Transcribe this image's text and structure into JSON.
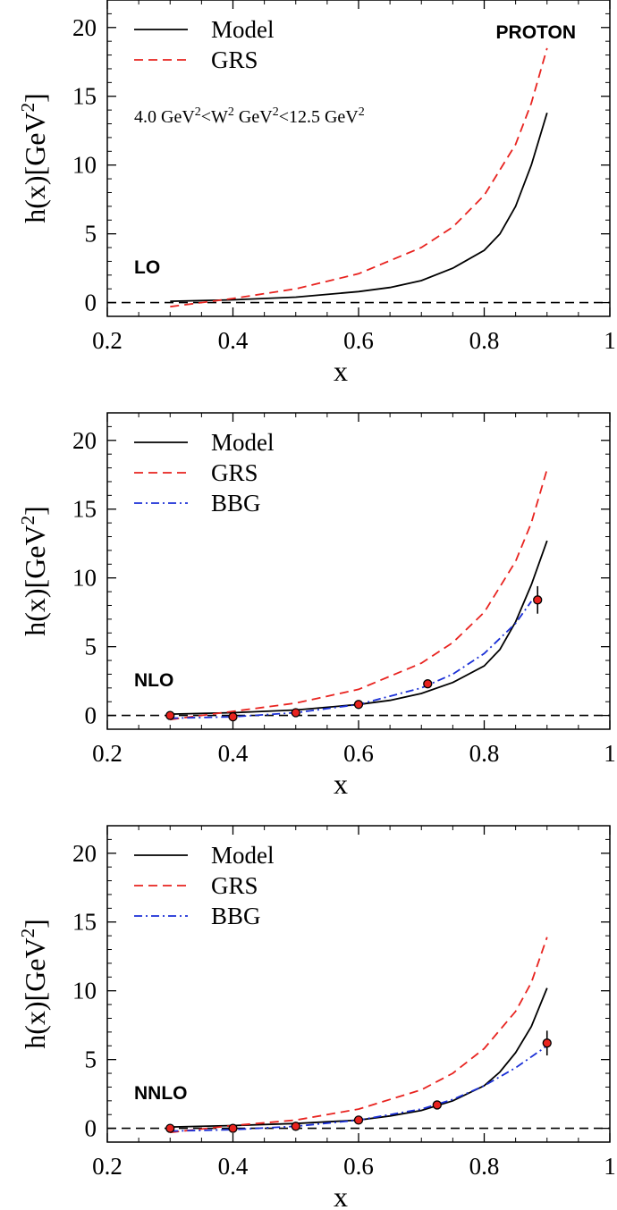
{
  "chart_data": [
    {
      "type": "line",
      "panel_label": "LO",
      "corner_label": "PROTON",
      "annotation": {
        "prefix": "4.0 GeV",
        "mid1": "<W",
        "mid2": " GeV",
        "mid3": "<12.5 GeV",
        "sup": "2"
      },
      "ylabel": "h(x)[GeV",
      "ylabel_sup": "2",
      "ylabel_close": "]",
      "xlabel": "x",
      "xlim": [
        0.2,
        1.0
      ],
      "ylim": [
        -1,
        22
      ],
      "xticks": [
        "0.2",
        "0.4",
        "0.6",
        "0.8",
        "1"
      ],
      "yticks": [
        "0",
        "5",
        "10",
        "15",
        "20"
      ],
      "baseline": 0,
      "series": [
        {
          "name": "Model",
          "color": "#000000",
          "style": "solid",
          "x": [
            0.3,
            0.4,
            0.5,
            0.6,
            0.65,
            0.7,
            0.75,
            0.8,
            0.825,
            0.85,
            0.875,
            0.9
          ],
          "y": [
            0.1,
            0.2,
            0.4,
            0.8,
            1.1,
            1.6,
            2.5,
            3.8,
            5.0,
            7.0,
            10.0,
            13.8
          ]
        },
        {
          "name": "GRS",
          "color": "#e8231f",
          "style": "dashed",
          "x": [
            0.3,
            0.4,
            0.5,
            0.6,
            0.7,
            0.75,
            0.8,
            0.85,
            0.875,
            0.9
          ],
          "y": [
            -0.3,
            0.3,
            1.0,
            2.1,
            4.0,
            5.5,
            7.8,
            11.5,
            14.5,
            18.5
          ]
        }
      ],
      "points": []
    },
    {
      "type": "line",
      "panel_label": "NLO",
      "ylabel": "h(x)[GeV",
      "ylabel_sup": "2",
      "ylabel_close": "]",
      "xlabel": "x",
      "xlim": [
        0.2,
        1.0
      ],
      "ylim": [
        -1,
        22
      ],
      "xticks": [
        "0.2",
        "0.4",
        "0.6",
        "0.8",
        "1"
      ],
      "yticks": [
        "0",
        "5",
        "10",
        "15",
        "20"
      ],
      "baseline": 0,
      "series": [
        {
          "name": "Model",
          "color": "#000000",
          "style": "solid",
          "x": [
            0.3,
            0.4,
            0.5,
            0.6,
            0.65,
            0.7,
            0.75,
            0.8,
            0.825,
            0.85,
            0.875,
            0.9
          ],
          "y": [
            0.1,
            0.2,
            0.4,
            0.8,
            1.1,
            1.6,
            2.4,
            3.6,
            4.8,
            6.8,
            9.5,
            12.7
          ]
        },
        {
          "name": "GRS",
          "color": "#e8231f",
          "style": "dashed",
          "x": [
            0.3,
            0.4,
            0.5,
            0.6,
            0.7,
            0.75,
            0.8,
            0.85,
            0.875,
            0.9
          ],
          "y": [
            -0.3,
            0.3,
            0.9,
            1.9,
            3.8,
            5.3,
            7.5,
            11.2,
            14.0,
            17.9
          ]
        },
        {
          "name": "BBG",
          "color": "#1a2fd6",
          "style": "dashdot",
          "x": [
            0.3,
            0.4,
            0.5,
            0.6,
            0.7,
            0.75,
            0.8,
            0.85,
            0.875
          ],
          "y": [
            -0.2,
            -0.1,
            0.2,
            0.8,
            2.0,
            3.0,
            4.5,
            6.7,
            8.3
          ]
        }
      ],
      "points": [
        {
          "x": 0.3,
          "y": 0.0,
          "err": 0.1
        },
        {
          "x": 0.4,
          "y": -0.1,
          "err": 0.1
        },
        {
          "x": 0.5,
          "y": 0.2,
          "err": 0.1
        },
        {
          "x": 0.6,
          "y": 0.8,
          "err": 0.15
        },
        {
          "x": 0.71,
          "y": 2.3,
          "err": 0.2
        },
        {
          "x": 0.885,
          "y": 8.4,
          "err": 1.0
        }
      ]
    },
    {
      "type": "line",
      "panel_label": "NNLO",
      "ylabel": "h(x)[GeV",
      "ylabel_sup": "2",
      "ylabel_close": "]",
      "xlabel": "x",
      "xlim": [
        0.2,
        1.0
      ],
      "ylim": [
        -1,
        22
      ],
      "xticks": [
        "0.2",
        "0.4",
        "0.6",
        "0.8",
        "1"
      ],
      "yticks": [
        "0",
        "5",
        "10",
        "15",
        "20"
      ],
      "baseline": 0,
      "series": [
        {
          "name": "Model",
          "color": "#000000",
          "style": "solid",
          "x": [
            0.3,
            0.4,
            0.5,
            0.6,
            0.65,
            0.7,
            0.75,
            0.8,
            0.825,
            0.85,
            0.875,
            0.9
          ],
          "y": [
            0.1,
            0.2,
            0.35,
            0.6,
            0.9,
            1.3,
            2.0,
            3.1,
            4.1,
            5.5,
            7.4,
            10.2
          ]
        },
        {
          "name": "GRS",
          "color": "#e8231f",
          "style": "dashed",
          "x": [
            0.3,
            0.4,
            0.5,
            0.6,
            0.7,
            0.75,
            0.8,
            0.85,
            0.875,
            0.9
          ],
          "y": [
            -0.3,
            0.2,
            0.6,
            1.4,
            2.8,
            4.0,
            5.8,
            8.5,
            10.6,
            13.9
          ]
        },
        {
          "name": "BBG",
          "color": "#1a2fd6",
          "style": "dashdot",
          "x": [
            0.3,
            0.4,
            0.5,
            0.6,
            0.7,
            0.75,
            0.8,
            0.85,
            0.9
          ],
          "y": [
            -0.2,
            -0.1,
            0.15,
            0.6,
            1.4,
            2.1,
            3.1,
            4.4,
            6.0
          ]
        }
      ],
      "points": [
        {
          "x": 0.3,
          "y": 0.0,
          "err": 0.1
        },
        {
          "x": 0.4,
          "y": 0.0,
          "err": 0.1
        },
        {
          "x": 0.5,
          "y": 0.15,
          "err": 0.1
        },
        {
          "x": 0.6,
          "y": 0.6,
          "err": 0.15
        },
        {
          "x": 0.725,
          "y": 1.7,
          "err": 0.2
        },
        {
          "x": 0.9,
          "y": 6.2,
          "err": 0.9
        }
      ]
    }
  ]
}
